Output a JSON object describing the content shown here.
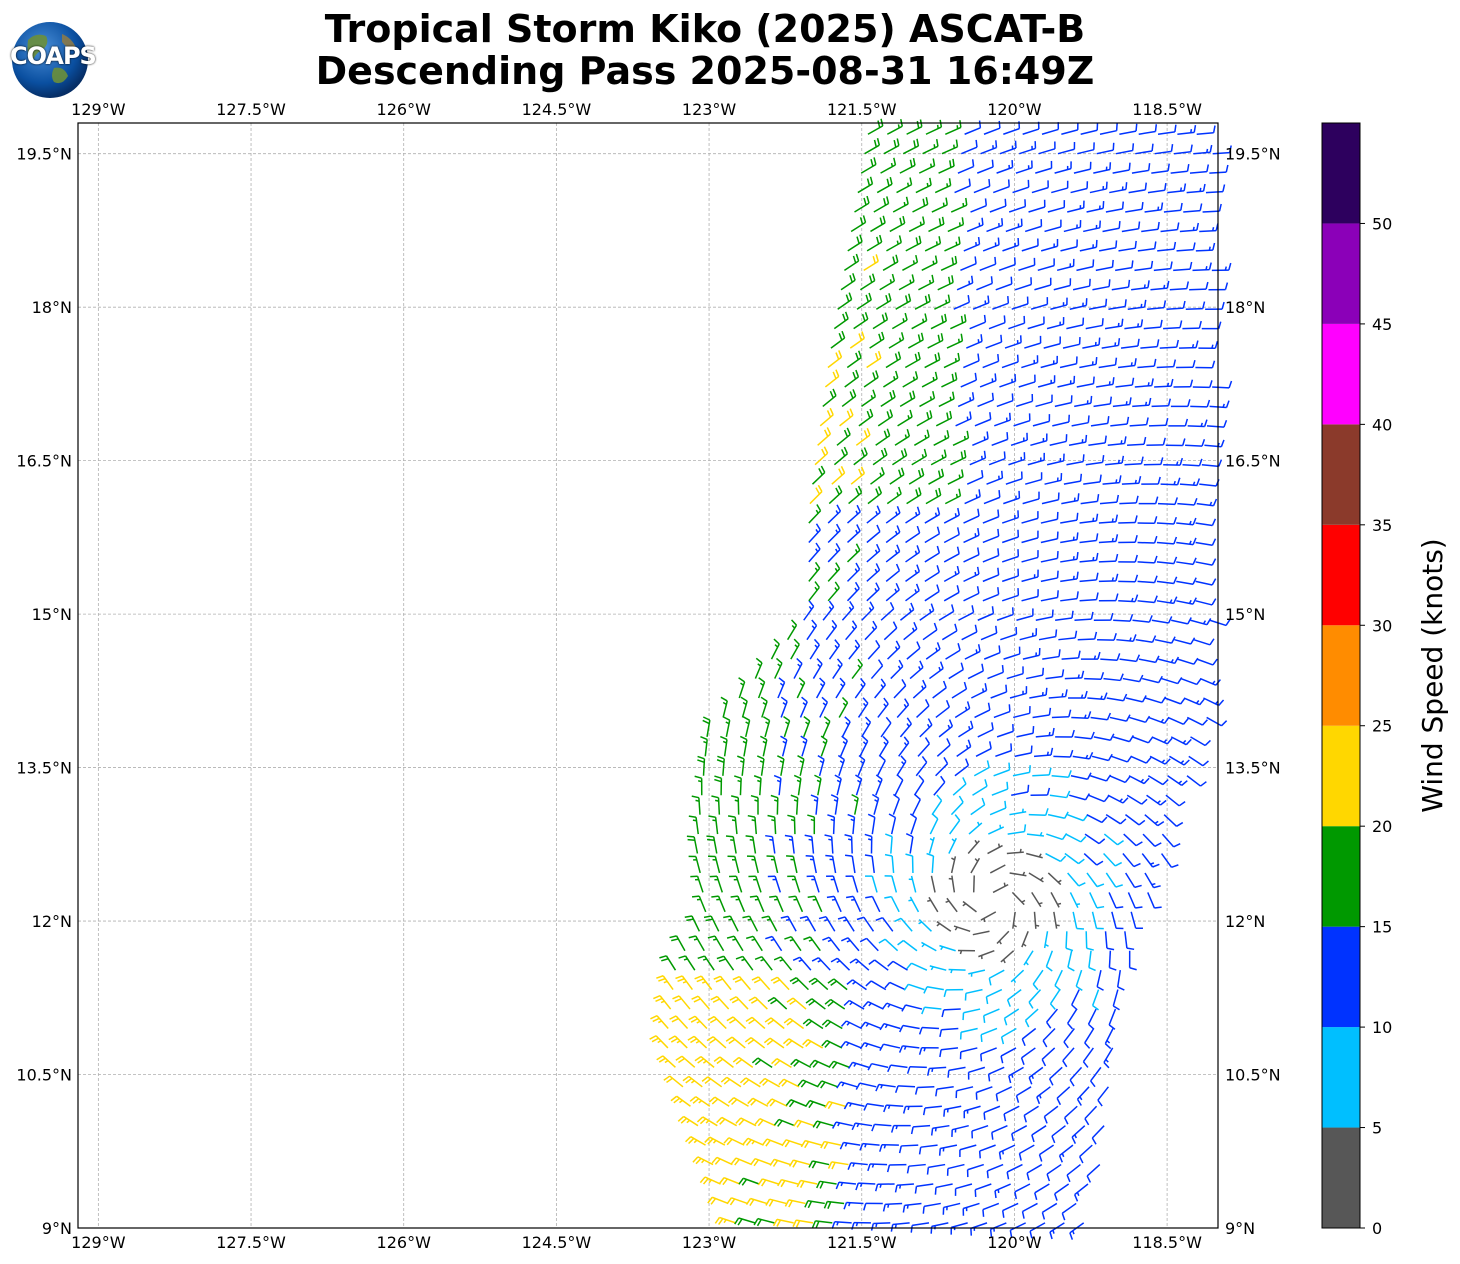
{
  "logo": {
    "text": "COAPS"
  },
  "title": {
    "line1": "Tropical Storm Kiko (2025) ASCAT-B",
    "line2": "Descending Pass 2025-08-31 16:49Z"
  },
  "map": {
    "lon_range": [
      -129.2,
      -118.0
    ],
    "lat_range": [
      9.0,
      19.8
    ],
    "lon_ticks": [
      -129,
      -127.5,
      -126,
      -124.5,
      -123,
      -121.5,
      -120,
      -118.5
    ],
    "lon_tick_labels": [
      "129°W",
      "127.5°W",
      "126°W",
      "124.5°W",
      "123°W",
      "121.5°W",
      "120°W",
      "118.5°W"
    ],
    "lat_ticks": [
      9,
      10.5,
      12,
      13.5,
      15,
      16.5,
      18,
      19.5
    ],
    "lat_tick_labels": [
      "9°N",
      "10.5°N",
      "12°N",
      "13.5°N",
      "15°N",
      "16.5°N",
      "18°N",
      "19.5°N"
    ],
    "gridlines": true
  },
  "colorbar": {
    "label": "Wind Speed (knots)",
    "bins": [
      {
        "min": 0,
        "max": 5,
        "color": "#575757"
      },
      {
        "min": 5,
        "max": 10,
        "color": "#00bfff"
      },
      {
        "min": 10,
        "max": 15,
        "color": "#0033ff"
      },
      {
        "min": 15,
        "max": 20,
        "color": "#009900"
      },
      {
        "min": 20,
        "max": 25,
        "color": "#ffd700"
      },
      {
        "min": 25,
        "max": 30,
        "color": "#ff8c00"
      },
      {
        "min": 30,
        "max": 35,
        "color": "#ff0000"
      },
      {
        "min": 35,
        "max": 40,
        "color": "#8b3a2b"
      },
      {
        "min": 40,
        "max": 45,
        "color": "#ff00ff"
      },
      {
        "min": 45,
        "max": 50,
        "color": "#8b00b8"
      },
      {
        "min": 50,
        "max": 55,
        "color": "#2d005e"
      }
    ],
    "tick_labels": [
      "0",
      "5",
      "10",
      "15",
      "20",
      "25",
      "30",
      "35",
      "40",
      "45",
      "50"
    ]
  },
  "wind_field": {
    "swath_west_edge": [
      [
        9.0,
        -122.8
      ],
      [
        10.8,
        -123.5
      ],
      [
        11.6,
        -123.4
      ],
      [
        12.0,
        -123.1
      ],
      [
        12.7,
        -123.2
      ],
      [
        13.8,
        -123.1
      ],
      [
        14.4,
        -122.6
      ],
      [
        15.0,
        -122.1
      ],
      [
        16.0,
        -122.1
      ],
      [
        17.5,
        -121.9
      ],
      [
        19.8,
        -121.5
      ]
    ],
    "swath_east_edge": [
      [
        9.0,
        -119.2
      ],
      [
        11.0,
        -118.9
      ],
      [
        12.0,
        -118.7
      ],
      [
        13.0,
        -118.4
      ],
      [
        14.0,
        -118.0
      ],
      [
        19.8,
        -118.0
      ]
    ],
    "center_lat": 12.2,
    "center_lon": -120.2
  }
}
